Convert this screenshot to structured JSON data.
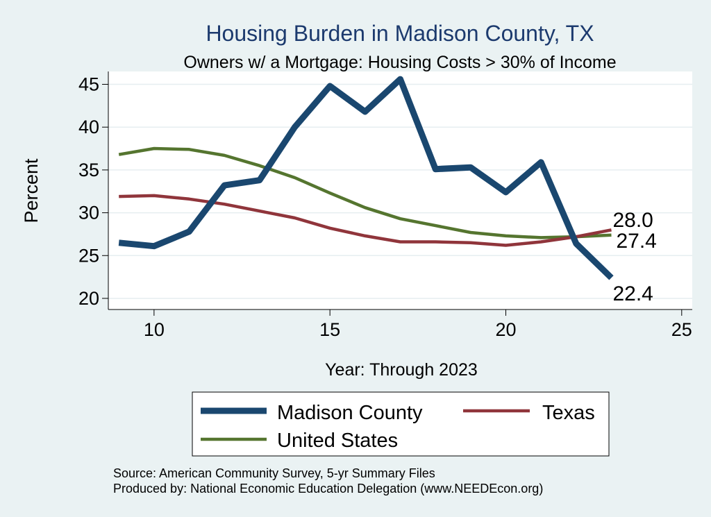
{
  "chart_data": {
    "type": "line",
    "title": "Housing Burden in Madison County, TX",
    "subtitle": "Owners w/ a Mortgage: Housing Costs > 30% of Income",
    "xlabel": "Year: Through 2023",
    "ylabel": "Percent",
    "xlim": [
      8.7,
      25.3
    ],
    "ylim": [
      18.7,
      46.5
    ],
    "xticks": [
      10,
      15,
      20,
      25
    ],
    "yticks": [
      20,
      25,
      30,
      35,
      40,
      45
    ],
    "grid": true,
    "legend_position": "bottom",
    "x": [
      9,
      10,
      11,
      12,
      13,
      14,
      15,
      16,
      17,
      18,
      19,
      20,
      21,
      22,
      23
    ],
    "series": [
      {
        "name": "Madison County",
        "color": "#1a476f",
        "width": 9,
        "values": [
          26.5,
          26.1,
          27.8,
          33.2,
          33.8,
          40.0,
          44.8,
          41.8,
          45.6,
          35.1,
          35.3,
          32.4,
          35.9,
          26.4,
          22.4
        ],
        "end_label": "22.4"
      },
      {
        "name": "Texas",
        "color": "#90353b",
        "width": 4.5,
        "values": [
          31.9,
          32.0,
          31.6,
          31.0,
          30.2,
          29.4,
          28.2,
          27.3,
          26.6,
          26.6,
          26.5,
          26.2,
          26.6,
          27.2,
          28.0
        ],
        "end_label": "28.0"
      },
      {
        "name": "United States",
        "color": "#55752f",
        "width": 4.5,
        "values": [
          36.8,
          37.5,
          37.4,
          36.7,
          35.5,
          34.1,
          32.3,
          30.6,
          29.3,
          28.5,
          27.7,
          27.3,
          27.1,
          27.2,
          27.4
        ],
        "end_label": "27.4"
      }
    ]
  },
  "source_note": "Source: American Community Survey, 5-yr Summary Files",
  "produced_note": "Produced by: National Economic Education Delegation (www.NEEDEcon.org)"
}
